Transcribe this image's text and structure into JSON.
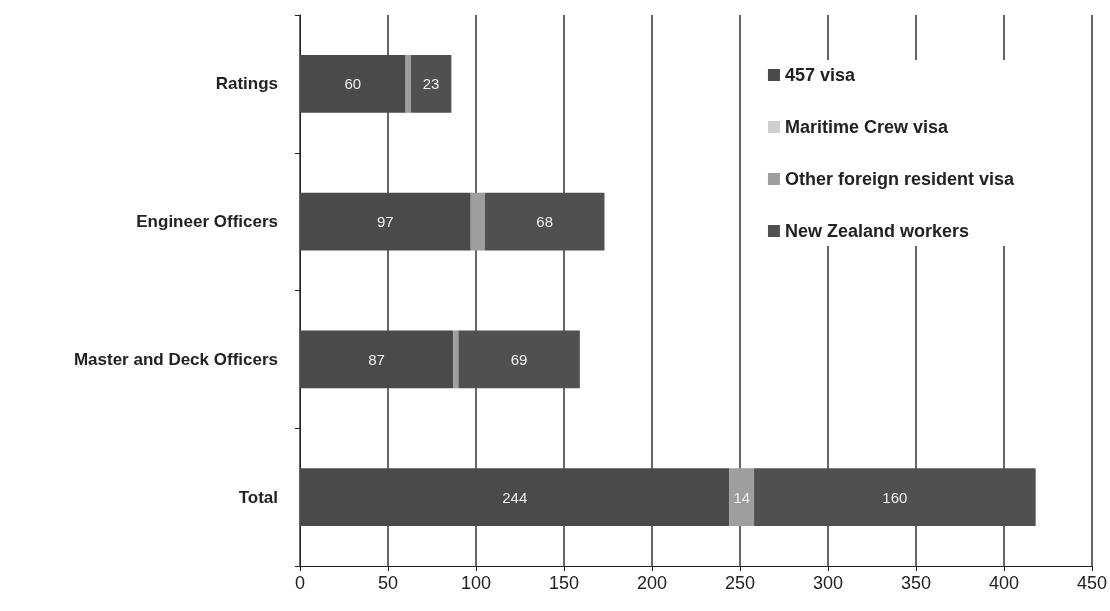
{
  "chart_data": {
    "type": "bar",
    "orientation": "horizontal",
    "stacked": true,
    "categories": [
      "Ratings",
      "Engineer Officers",
      "Master and Deck Officers",
      "Total"
    ],
    "series": [
      {
        "name": "457 visa",
        "color": "#4a4a4a",
        "values": [
          60,
          97,
          87,
          244
        ],
        "value_labels": [
          "60",
          "97",
          "87",
          "244"
        ]
      },
      {
        "name": "Maritime Crew visa",
        "color": "#cfcfcf",
        "values": [
          0,
          0,
          0,
          0
        ]
      },
      {
        "name": "Other foreign resident visa",
        "color": "#9e9e9e",
        "values": [
          3,
          8,
          3,
          14
        ],
        "value_labels": [
          null,
          null,
          null,
          "14"
        ]
      },
      {
        "name": "New Zealand workers",
        "color": "#505050",
        "values": [
          23,
          68,
          69,
          160
        ],
        "value_labels": [
          "23",
          "68",
          "69",
          "160"
        ]
      }
    ],
    "xlim": [
      0,
      450
    ],
    "xticks": [
      0,
      50,
      100,
      150,
      200,
      250,
      300,
      350,
      400,
      450
    ],
    "grid": "x",
    "legend": "right"
  }
}
